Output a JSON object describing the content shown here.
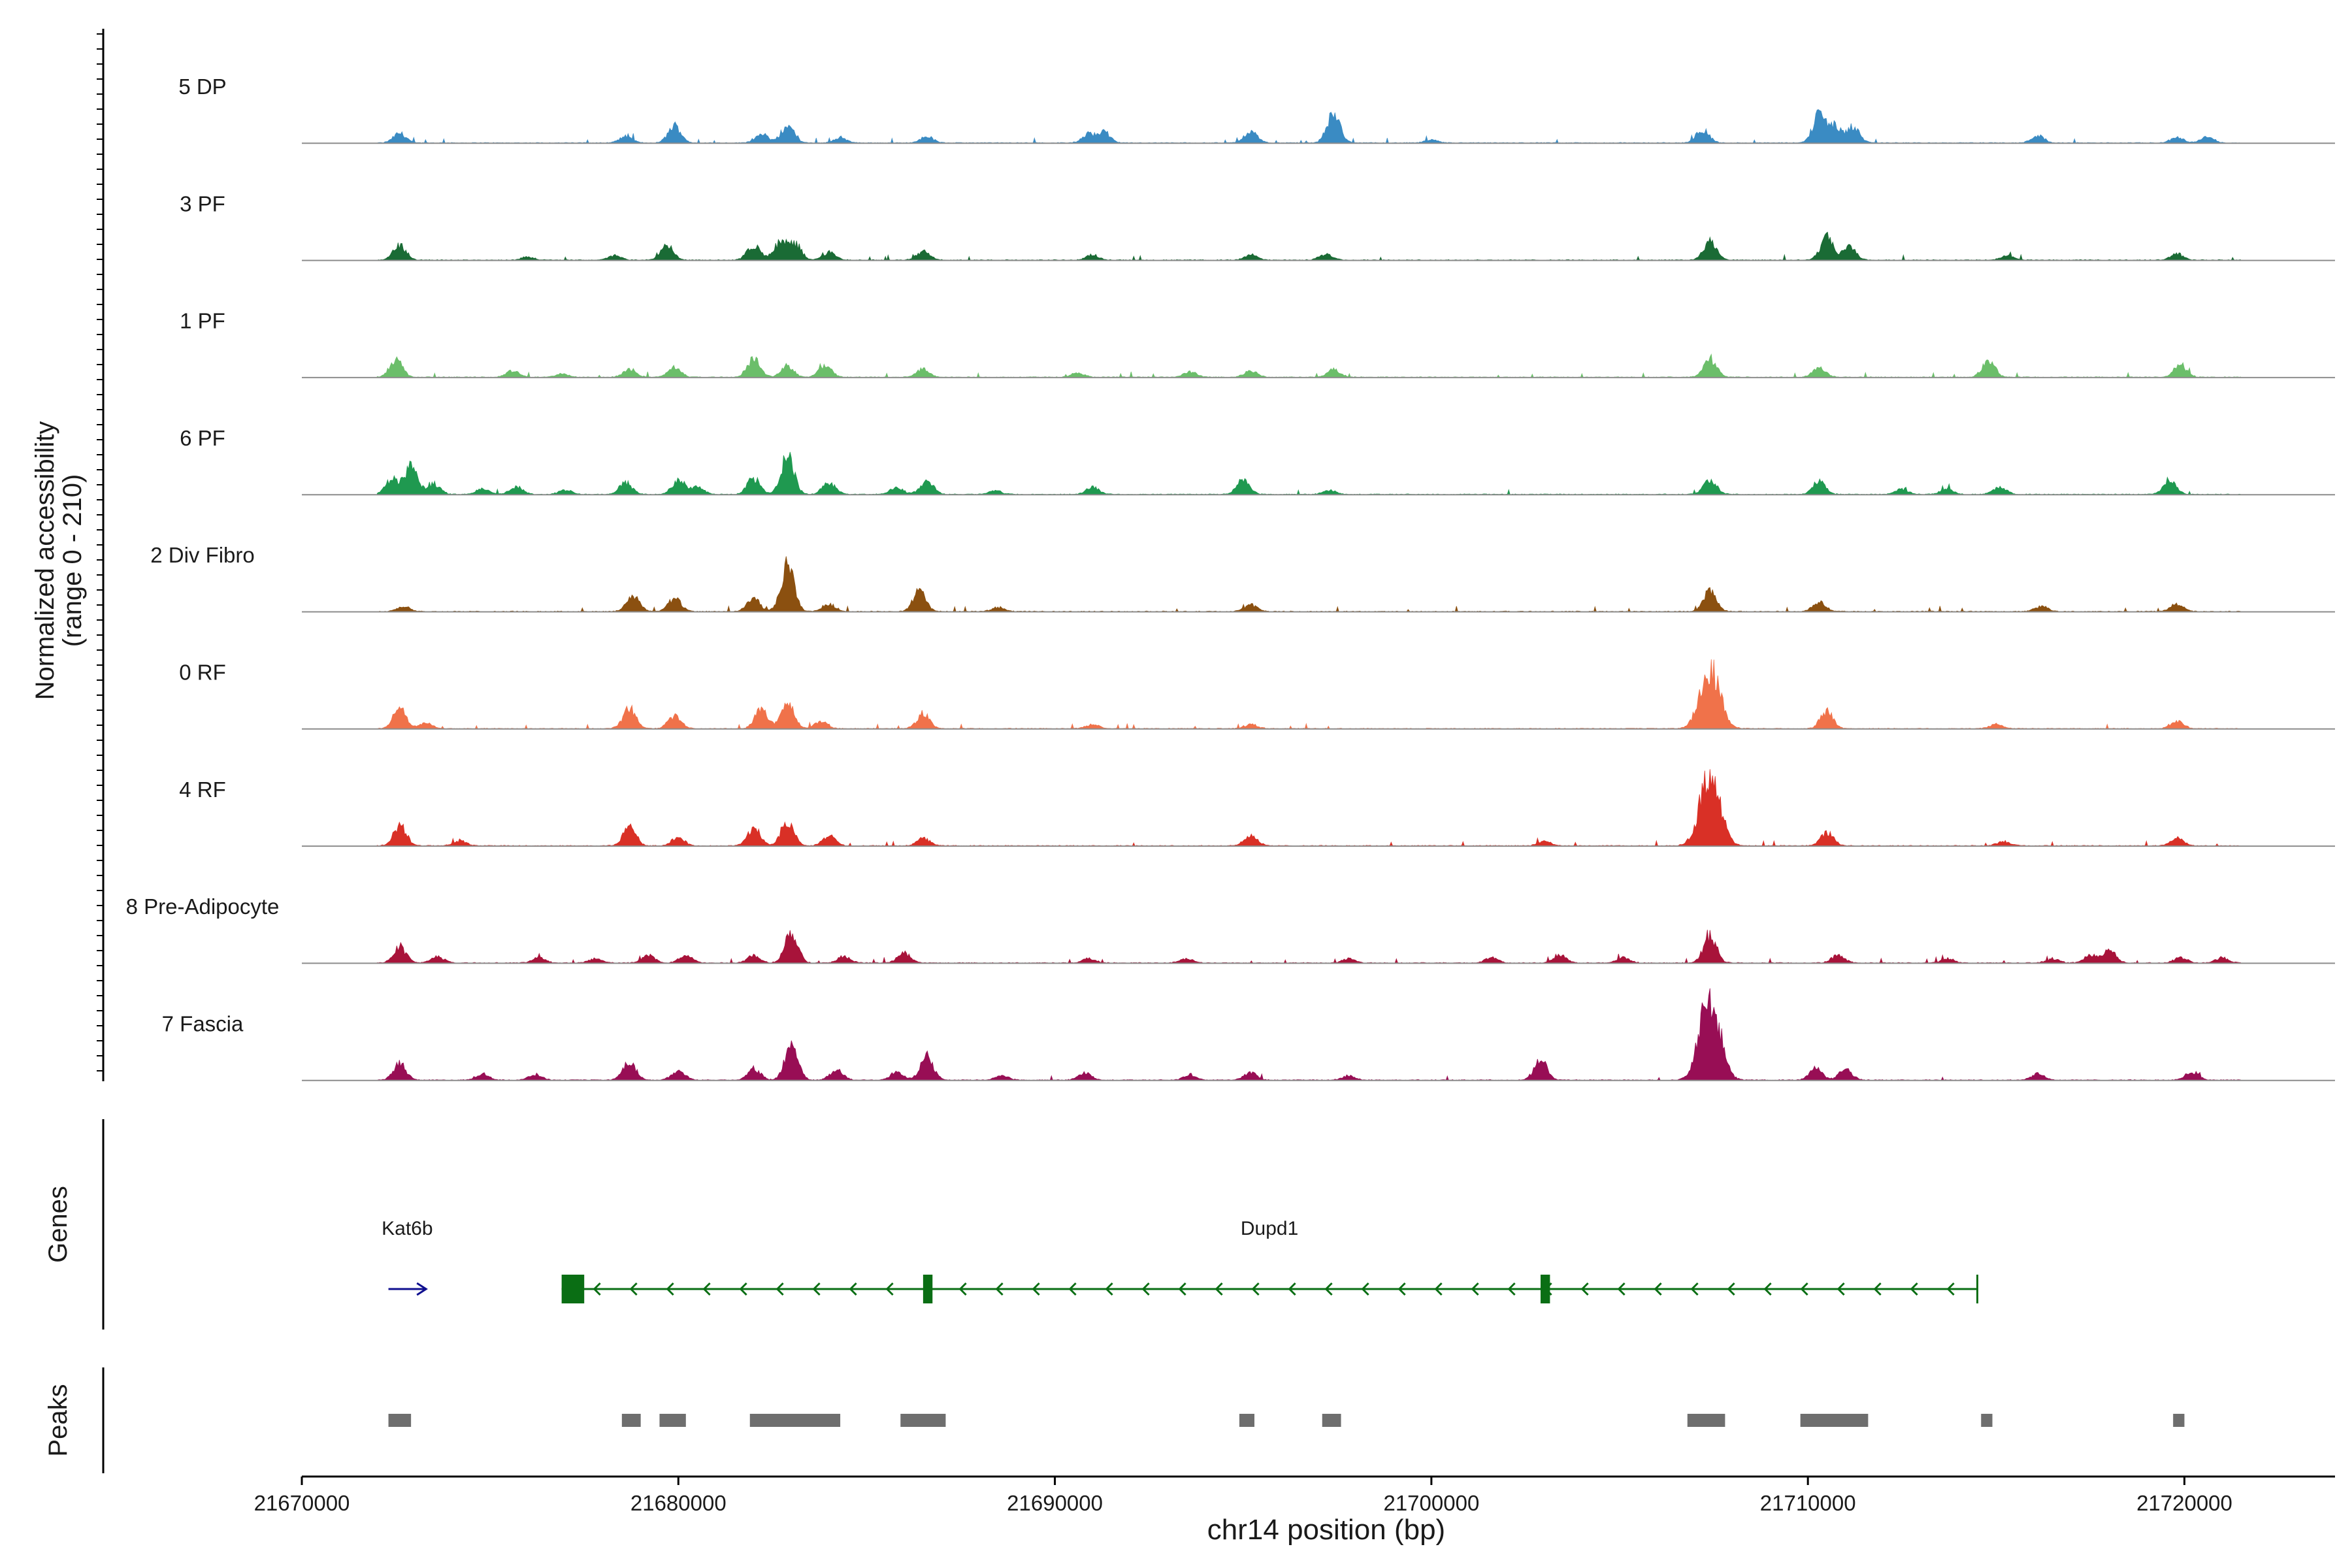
{
  "chart_data": {
    "type": "area",
    "title": "",
    "ylabel_line1": "Normalized accessibility",
    "ylabel_line2": "(range 0 - 210)",
    "y_range": [
      0,
      210
    ],
    "xlabel": "chr14 position (bp)",
    "xlim": [
      21670000,
      21724000
    ],
    "x_ticks": [
      21670000,
      21680000,
      21690000,
      21700000,
      21710000,
      21720000
    ],
    "x_tick_labels": [
      "21670000",
      "21680000",
      "21690000",
      "21700000",
      "21710000",
      "21720000"
    ],
    "track_range": [
      21672000,
      21721500
    ],
    "tracks": [
      {
        "name": "5 DP",
        "color": "#3A8BC3",
        "peaks": [
          [
            21672600,
            18
          ],
          [
            21678600,
            12
          ],
          [
            21679900,
            32
          ],
          [
            21682200,
            18
          ],
          [
            21682900,
            32
          ],
          [
            21684300,
            10
          ],
          [
            21686600,
            12
          ],
          [
            21690900,
            16
          ],
          [
            21691300,
            20
          ],
          [
            21695200,
            22
          ],
          [
            21697400,
            55
          ],
          [
            21700000,
            5
          ],
          [
            21707200,
            25
          ],
          [
            21710300,
            52
          ],
          [
            21710700,
            30
          ],
          [
            21711200,
            30
          ],
          [
            21716100,
            14
          ],
          [
            21719800,
            10
          ],
          [
            21720600,
            12
          ]
        ]
      },
      {
        "name": "3 PF",
        "color": "#1A6B35",
        "peaks": [
          [
            21672600,
            28
          ],
          [
            21676000,
            6
          ],
          [
            21678300,
            8
          ],
          [
            21679700,
            26
          ],
          [
            21682000,
            28
          ],
          [
            21682700,
            32
          ],
          [
            21683100,
            30
          ],
          [
            21684000,
            14
          ],
          [
            21686500,
            16
          ],
          [
            21691000,
            10
          ],
          [
            21695200,
            10
          ],
          [
            21697200,
            12
          ],
          [
            21707400,
            35
          ],
          [
            21710500,
            42
          ],
          [
            21711100,
            24
          ],
          [
            21715300,
            8
          ],
          [
            21719800,
            12
          ]
        ]
      },
      {
        "name": "1 PF",
        "color": "#6BBE6A",
        "peaks": [
          [
            21672500,
            32
          ],
          [
            21675600,
            12
          ],
          [
            21676900,
            6
          ],
          [
            21678700,
            16
          ],
          [
            21679900,
            18
          ],
          [
            21682000,
            34
          ],
          [
            21682900,
            20
          ],
          [
            21683900,
            22
          ],
          [
            21686500,
            16
          ],
          [
            21690600,
            8
          ],
          [
            21693600,
            10
          ],
          [
            21695200,
            12
          ],
          [
            21697400,
            14
          ],
          [
            21707400,
            35
          ],
          [
            21710300,
            18
          ],
          [
            21714800,
            30
          ],
          [
            21719900,
            22
          ]
        ]
      },
      {
        "name": "6 PF",
        "color": "#1F9950",
        "peaks": [
          [
            21672400,
            30
          ],
          [
            21672900,
            50
          ],
          [
            21673500,
            20
          ],
          [
            21674800,
            10
          ],
          [
            21675700,
            14
          ],
          [
            21677000,
            8
          ],
          [
            21678600,
            22
          ],
          [
            21680000,
            26
          ],
          [
            21680500,
            14
          ],
          [
            21682000,
            30
          ],
          [
            21682900,
            70
          ],
          [
            21684000,
            22
          ],
          [
            21685800,
            14
          ],
          [
            21686600,
            26
          ],
          [
            21688400,
            8
          ],
          [
            21691000,
            14
          ],
          [
            21695000,
            26
          ],
          [
            21697300,
            8
          ],
          [
            21707400,
            28
          ],
          [
            21710300,
            24
          ],
          [
            21712500,
            10
          ],
          [
            21713700,
            10
          ],
          [
            21715100,
            14
          ],
          [
            21719600,
            28
          ]
        ]
      },
      {
        "name": "2 Div Fibro",
        "color": "#8B5010",
        "peaks": [
          [
            21672700,
            10
          ],
          [
            21678800,
            30
          ],
          [
            21679900,
            24
          ],
          [
            21682000,
            24
          ],
          [
            21682900,
            85
          ],
          [
            21684000,
            14
          ],
          [
            21686400,
            38
          ],
          [
            21688500,
            8
          ],
          [
            21695200,
            12
          ],
          [
            21707400,
            38
          ],
          [
            21710300,
            18
          ],
          [
            21716200,
            10
          ],
          [
            21719800,
            14
          ]
        ]
      },
      {
        "name": "0 RF",
        "color": "#F0724A",
        "peaks": [
          [
            21672600,
            38
          ],
          [
            21673300,
            10
          ],
          [
            21678700,
            38
          ],
          [
            21679900,
            24
          ],
          [
            21682200,
            38
          ],
          [
            21682900,
            48
          ],
          [
            21683800,
            14
          ],
          [
            21686500,
            28
          ],
          [
            21691000,
            8
          ],
          [
            21695200,
            8
          ],
          [
            21707400,
            115
          ],
          [
            21710500,
            32
          ],
          [
            21715000,
            8
          ],
          [
            21719800,
            14
          ]
        ]
      },
      {
        "name": "4 RF",
        "color": "#D93026",
        "peaks": [
          [
            21672600,
            38
          ],
          [
            21674200,
            10
          ],
          [
            21678700,
            34
          ],
          [
            21680000,
            16
          ],
          [
            21682000,
            34
          ],
          [
            21682900,
            48
          ],
          [
            21684000,
            18
          ],
          [
            21686500,
            14
          ],
          [
            21695200,
            20
          ],
          [
            21703000,
            8
          ],
          [
            21707400,
            140
          ],
          [
            21710500,
            24
          ],
          [
            21715200,
            8
          ],
          [
            21719800,
            14
          ]
        ]
      },
      {
        "name": "8 Pre-Adipocyte",
        "color": "#A8133A",
        "peaks": [
          [
            21672600,
            28
          ],
          [
            21673600,
            12
          ],
          [
            21676300,
            10
          ],
          [
            21677800,
            8
          ],
          [
            21679200,
            14
          ],
          [
            21680200,
            16
          ],
          [
            21682000,
            14
          ],
          [
            21683000,
            60
          ],
          [
            21684400,
            12
          ],
          [
            21686000,
            18
          ],
          [
            21690900,
            8
          ],
          [
            21693500,
            8
          ],
          [
            21697800,
            8
          ],
          [
            21701600,
            10
          ],
          [
            21703400,
            16
          ],
          [
            21705100,
            10
          ],
          [
            21707400,
            50
          ],
          [
            21710800,
            14
          ],
          [
            21713700,
            8
          ],
          [
            21716500,
            8
          ],
          [
            21717500,
            14
          ],
          [
            21718000,
            22
          ],
          [
            21719900,
            10
          ],
          [
            21721000,
            10
          ]
        ]
      },
      {
        "name": "7 Fascia",
        "color": "#980E55",
        "peaks": [
          [
            21672600,
            30
          ],
          [
            21674800,
            12
          ],
          [
            21676200,
            10
          ],
          [
            21678700,
            34
          ],
          [
            21680000,
            18
          ],
          [
            21682000,
            22
          ],
          [
            21683000,
            68
          ],
          [
            21684200,
            20
          ],
          [
            21685800,
            16
          ],
          [
            21686600,
            44
          ],
          [
            21688600,
            8
          ],
          [
            21690800,
            14
          ],
          [
            21693600,
            10
          ],
          [
            21695200,
            14
          ],
          [
            21697800,
            8
          ],
          [
            21702900,
            38
          ],
          [
            21707400,
            160
          ],
          [
            21710200,
            22
          ],
          [
            21711000,
            20
          ],
          [
            21716100,
            12
          ],
          [
            21720200,
            16
          ]
        ]
      }
    ],
    "genes_label": "Genes",
    "genes": [
      {
        "name": "Kat6b",
        "strand": "+",
        "color": "#0F0F8F",
        "start": 21672300,
        "end": 21673300
      },
      {
        "name": "Dupd1",
        "strand": "-",
        "color": "#0A6E14",
        "start": 21676900,
        "end": 21714500,
        "exons": [
          [
            21676900,
            21677500
          ],
          [
            21686500,
            21686750
          ],
          [
            21702900,
            21703150
          ]
        ]
      }
    ],
    "peaks_label": "Peaks",
    "peak_regions": [
      [
        21672300,
        21672900
      ],
      [
        21678500,
        21679000
      ],
      [
        21679500,
        21680200
      ],
      [
        21681900,
        21684300
      ],
      [
        21685900,
        21687100
      ],
      [
        21694900,
        21695300
      ],
      [
        21697100,
        21697600
      ],
      [
        21706800,
        21707800
      ],
      [
        21709800,
        21711600
      ],
      [
        21714600,
        21714900
      ],
      [
        21719700,
        21720000
      ]
    ]
  }
}
